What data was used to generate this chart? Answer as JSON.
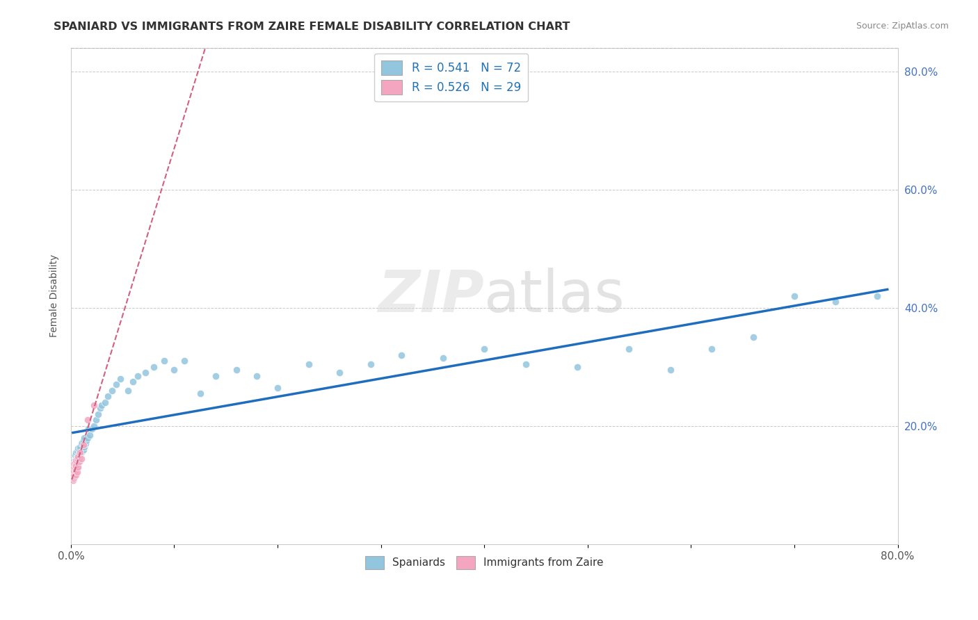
{
  "title": "SPANIARD VS IMMIGRANTS FROM ZAIRE FEMALE DISABILITY CORRELATION CHART",
  "source": "Source: ZipAtlas.com",
  "xlabel": "",
  "ylabel": "Female Disability",
  "xlim": [
    0.0,
    0.8
  ],
  "ylim": [
    0.0,
    0.84
  ],
  "legend_R1": "R = 0.541",
  "legend_N1": "N = 72",
  "legend_R2": "R = 0.526",
  "legend_N2": "N = 29",
  "color_spaniards": "#92c5de",
  "color_zaire": "#f4a6c0",
  "trendline_color_spaniards": "#1f6dbf",
  "trendline_color_zaire": "#d46080",
  "watermark": "ZIPatlas",
  "spaniards_x": [
    0.002,
    0.003,
    0.003,
    0.003,
    0.004,
    0.004,
    0.004,
    0.005,
    0.005,
    0.005,
    0.006,
    0.006,
    0.006,
    0.007,
    0.007,
    0.007,
    0.008,
    0.008,
    0.009,
    0.009,
    0.01,
    0.01,
    0.011,
    0.011,
    0.012,
    0.012,
    0.013,
    0.013,
    0.014,
    0.015,
    0.016,
    0.017,
    0.018,
    0.02,
    0.022,
    0.024,
    0.026,
    0.028,
    0.03,
    0.033,
    0.036,
    0.04,
    0.044,
    0.048,
    0.055,
    0.06,
    0.065,
    0.072,
    0.08,
    0.09,
    0.1,
    0.11,
    0.125,
    0.14,
    0.16,
    0.18,
    0.2,
    0.23,
    0.26,
    0.29,
    0.32,
    0.36,
    0.4,
    0.44,
    0.49,
    0.54,
    0.58,
    0.62,
    0.66,
    0.7,
    0.74,
    0.78
  ],
  "spaniards_y": [
    0.125,
    0.13,
    0.135,
    0.14,
    0.13,
    0.14,
    0.15,
    0.135,
    0.145,
    0.155,
    0.13,
    0.145,
    0.158,
    0.14,
    0.15,
    0.162,
    0.148,
    0.16,
    0.152,
    0.165,
    0.155,
    0.17,
    0.158,
    0.172,
    0.16,
    0.175,
    0.165,
    0.18,
    0.17,
    0.175,
    0.18,
    0.195,
    0.185,
    0.195,
    0.2,
    0.21,
    0.22,
    0.23,
    0.235,
    0.24,
    0.25,
    0.26,
    0.27,
    0.28,
    0.26,
    0.275,
    0.285,
    0.29,
    0.3,
    0.31,
    0.295,
    0.31,
    0.255,
    0.285,
    0.295,
    0.285,
    0.265,
    0.305,
    0.29,
    0.305,
    0.32,
    0.315,
    0.33,
    0.305,
    0.3,
    0.33,
    0.295,
    0.33,
    0.35,
    0.42,
    0.41,
    0.42
  ],
  "zaire_x": [
    0.001,
    0.001,
    0.002,
    0.002,
    0.002,
    0.002,
    0.003,
    0.003,
    0.003,
    0.003,
    0.003,
    0.004,
    0.004,
    0.004,
    0.004,
    0.005,
    0.005,
    0.005,
    0.005,
    0.006,
    0.006,
    0.007,
    0.007,
    0.008,
    0.009,
    0.01,
    0.012,
    0.016,
    0.022
  ],
  "zaire_y": [
    0.115,
    0.12,
    0.108,
    0.115,
    0.12,
    0.128,
    0.112,
    0.118,
    0.124,
    0.13,
    0.136,
    0.115,
    0.122,
    0.13,
    0.138,
    0.118,
    0.125,
    0.133,
    0.142,
    0.122,
    0.145,
    0.13,
    0.148,
    0.14,
    0.155,
    0.145,
    0.168,
    0.21,
    0.235
  ]
}
